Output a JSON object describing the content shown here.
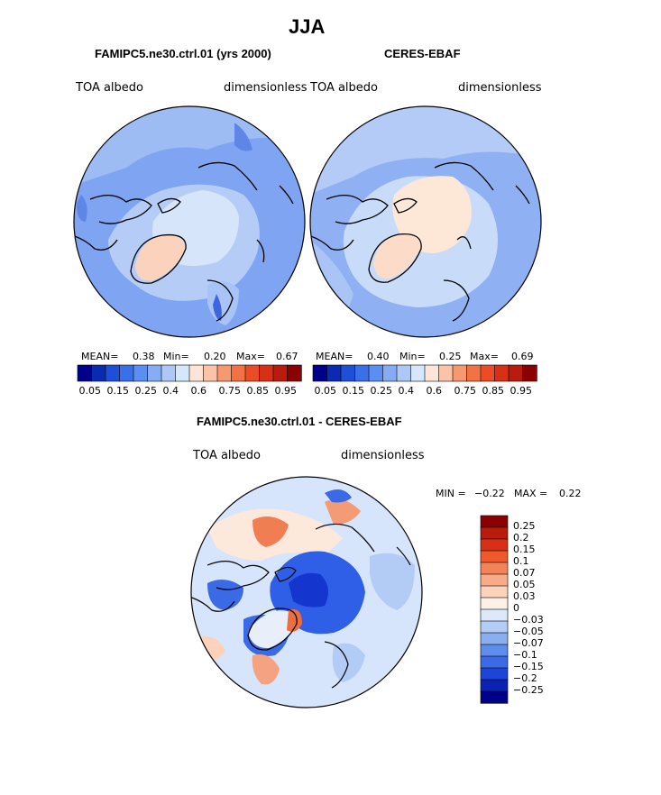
{
  "figure": {
    "title": "JJA",
    "panels": {
      "model": {
        "title": "FAMIPC5.ne30.ctrl.01 (yrs 2000)",
        "left_label": "TOA albedo",
        "right_label": "dimensionless",
        "mean_label": "MEAN=",
        "mean_value": "0.38",
        "min_label": "Min=",
        "min_value": "0.20",
        "max_label": "Max=",
        "max_value": "0.67"
      },
      "obs": {
        "title": "CERES-EBAF",
        "left_label": "TOA albedo",
        "right_label": "dimensionless",
        "mean_label": "MEAN=",
        "mean_value": "0.40",
        "min_label": "Min=",
        "min_value": "0.25",
        "max_label": "Max=",
        "max_value": "0.69"
      },
      "diff": {
        "title": "FAMIPC5.ne30.ctrl.01 - CERES-EBAF",
        "left_label": "TOA albedo",
        "right_label": "dimensionless",
        "min_label": "MIN =",
        "min_value": "−0.22",
        "max_label": "MAX =",
        "max_value": "0.22"
      }
    }
  },
  "chart_data": [
    {
      "type": "heatmap",
      "projection": "north-polar-stereographic",
      "title": "FAMIPC5.ne30.ctrl.01 (yrs 2000)",
      "variable": "TOA albedo",
      "units": "dimensionless",
      "stats": {
        "mean": 0.38,
        "min": 0.2,
        "max": 0.67
      },
      "colorbar": {
        "levels": [
          0.05,
          0.1,
          0.15,
          0.2,
          0.25,
          0.3,
          0.35,
          0.4,
          0.5,
          0.6,
          0.65,
          0.75,
          0.8,
          0.85,
          0.9,
          0.95
        ],
        "tick_labels": [
          "0.05",
          "0.15",
          "0.25",
          "0.4",
          "0.6",
          "0.75",
          "0.85",
          "0.95"
        ],
        "colors": [
          "#00008b",
          "#0a2bb0",
          "#1f4fd6",
          "#3a6fe8",
          "#5a8ef0",
          "#86acf3",
          "#aec8f5",
          "#d6e6fb",
          "#fde6d8",
          "#fbc3a8",
          "#f6996f",
          "#f07245",
          "#ea4d25",
          "#d73016",
          "#b81c0c",
          "#8b0000"
        ]
      }
    },
    {
      "type": "heatmap",
      "projection": "north-polar-stereographic",
      "title": "CERES-EBAF",
      "variable": "TOA albedo",
      "units": "dimensionless",
      "stats": {
        "mean": 0.4,
        "min": 0.25,
        "max": 0.69
      },
      "colorbar": {
        "levels": [
          0.05,
          0.1,
          0.15,
          0.2,
          0.25,
          0.3,
          0.35,
          0.4,
          0.5,
          0.6,
          0.65,
          0.75,
          0.8,
          0.85,
          0.9,
          0.95
        ],
        "tick_labels": [
          "0.05",
          "0.15",
          "0.25",
          "0.4",
          "0.6",
          "0.75",
          "0.85",
          "0.95"
        ],
        "colors": [
          "#00008b",
          "#0a2bb0",
          "#1f4fd6",
          "#3a6fe8",
          "#5a8ef0",
          "#86acf3",
          "#aec8f5",
          "#d6e6fb",
          "#fde6d8",
          "#fbc3a8",
          "#f6996f",
          "#f07245",
          "#ea4d25",
          "#d73016",
          "#b81c0c",
          "#8b0000"
        ]
      }
    },
    {
      "type": "heatmap",
      "projection": "north-polar-stereographic",
      "title": "FAMIPC5.ne30.ctrl.01 - CERES-EBAF",
      "variable": "TOA albedo",
      "units": "dimensionless",
      "stats": {
        "min": -0.22,
        "max": 0.22
      },
      "colorbar": {
        "orientation": "vertical",
        "tick_labels": [
          "0.25",
          "0.2",
          "0.15",
          "0.1",
          "0.07",
          "0.05",
          "0.03",
          "0",
          "−0.03",
          "−0.05",
          "−0.07",
          "−0.1",
          "−0.15",
          "−0.2",
          "−0.25"
        ],
        "colors": [
          "#8b0000",
          "#b81c0c",
          "#d73016",
          "#ef5a2c",
          "#f5835a",
          "#f9ab88",
          "#fcd2bb",
          "#fdf0e6",
          "#dbe9fb",
          "#b3cdf6",
          "#8aaff0",
          "#5e8deb",
          "#3a6ae6",
          "#1e44d8",
          "#0b22b3",
          "#00008b"
        ]
      }
    }
  ]
}
